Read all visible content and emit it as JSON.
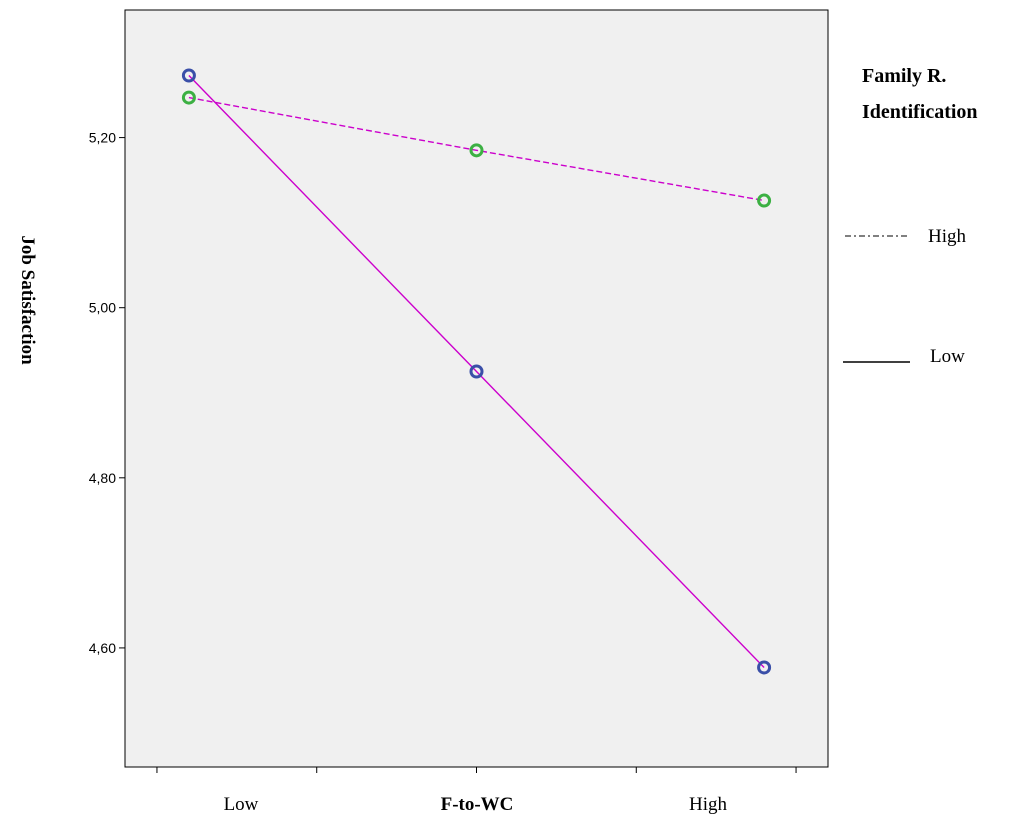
{
  "chart_data": {
    "type": "line",
    "ylabel": "Job Satisfaction",
    "xlabel": "F-to-WC",
    "x": [
      1.1,
      2.0,
      2.9
    ],
    "xlim": [
      0.9,
      3.1
    ],
    "ylim": [
      4.46,
      5.35
    ],
    "y_ticks": [
      4.6,
      4.8,
      5.0,
      5.2
    ],
    "y_tick_labels": [
      "4,60",
      "4,80",
      "5,00",
      "5,20"
    ],
    "x_ticks": [
      1.0,
      1.5,
      2.0,
      2.5,
      3.0
    ],
    "x_category_labels": [
      "Low",
      "High"
    ],
    "legend": {
      "title_line1": "Family R.",
      "title_line2": "Identification",
      "placement": "right"
    },
    "series": [
      {
        "name": "High",
        "values": [
          5.247,
          5.185,
          5.126
        ],
        "line_style": "dashed",
        "line_color": "#cc00cc",
        "marker_color": "#3cb043"
      },
      {
        "name": "Low",
        "values": [
          5.273,
          4.925,
          4.577
        ],
        "line_style": "solid",
        "line_color": "#cc00cc",
        "marker_color": "#3a4fa8"
      }
    ],
    "colors": {
      "plot_background": "#f0f0f0",
      "axis": "#000000"
    },
    "grid": false
  }
}
